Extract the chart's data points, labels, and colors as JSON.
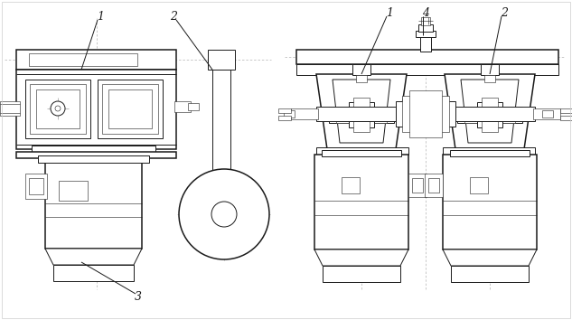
{
  "bg_color": "#ffffff",
  "line_color": "#1a1a1a",
  "lw": 0.7,
  "lw_thick": 1.1,
  "lw_thin": 0.4,
  "fig_width": 6.33,
  "fig_height": 3.54,
  "dpi": 100
}
